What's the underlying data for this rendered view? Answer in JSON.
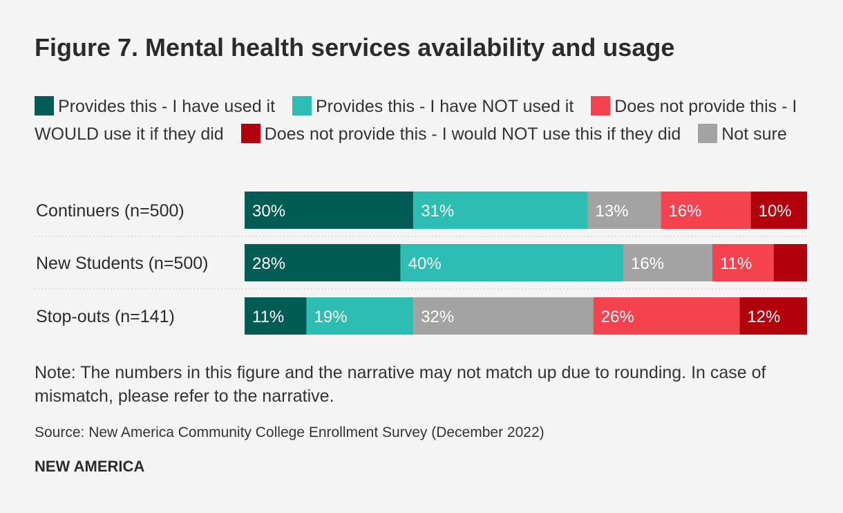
{
  "colors": {
    "used": "#005c55",
    "not_used": "#2ebdb3",
    "would_use": "#f4434f",
    "would_not_use": "#b2000d",
    "not_sure": "#a3a3a3"
  },
  "chart_data": {
    "type": "bar",
    "orientation": "horizontal",
    "stacked": true,
    "normalized": "percent",
    "title": "Figure 7. Mental health services availability and usage",
    "legend": [
      {
        "key": "used",
        "label": "Provides this - I have used it"
      },
      {
        "key": "not_used",
        "label": "Provides this - I have NOT used it"
      },
      {
        "key": "would_use",
        "label": "Does not provide this - I WOULD use it if they did"
      },
      {
        "key": "would_not_use",
        "label": "Does not provide this - I would NOT use this if they did"
      },
      {
        "key": "not_sure",
        "label": "Not sure"
      }
    ],
    "stack_order": [
      "used",
      "not_used",
      "not_sure",
      "would_use",
      "would_not_use"
    ],
    "categories": [
      "Continuers (n=500)",
      "New Students (n=500)",
      "Stop-outs (n=141)"
    ],
    "series": [
      {
        "key": "used",
        "name": "Provides this - I have used it",
        "values": [
          30,
          28,
          11
        ],
        "labels": [
          "30%",
          "28%",
          "11%"
        ]
      },
      {
        "key": "not_used",
        "name": "Provides this - I have NOT used it",
        "values": [
          31,
          40,
          19
        ],
        "labels": [
          "31%",
          "40%",
          "19%"
        ]
      },
      {
        "key": "not_sure",
        "name": "Not sure",
        "values": [
          13,
          16,
          32
        ],
        "labels": [
          "13%",
          "16%",
          "32%"
        ]
      },
      {
        "key": "would_use",
        "name": "Does not provide this - I WOULD use it if they did",
        "values": [
          16,
          11,
          26
        ],
        "labels": [
          "16%",
          "11%",
          "26%"
        ]
      },
      {
        "key": "would_not_use",
        "name": "Does not provide this - I would NOT use this if they did",
        "values": [
          10,
          6,
          12
        ],
        "labels": [
          "10%",
          "",
          "12%"
        ]
      }
    ]
  },
  "note": "Note: The numbers in this figure and the narrative may not match up due to rounding. In case of mismatch, please refer to the narrative.",
  "source": "Source: New America Community College Enrollment Survey (December 2022)",
  "brand": "NEW AMERICA"
}
